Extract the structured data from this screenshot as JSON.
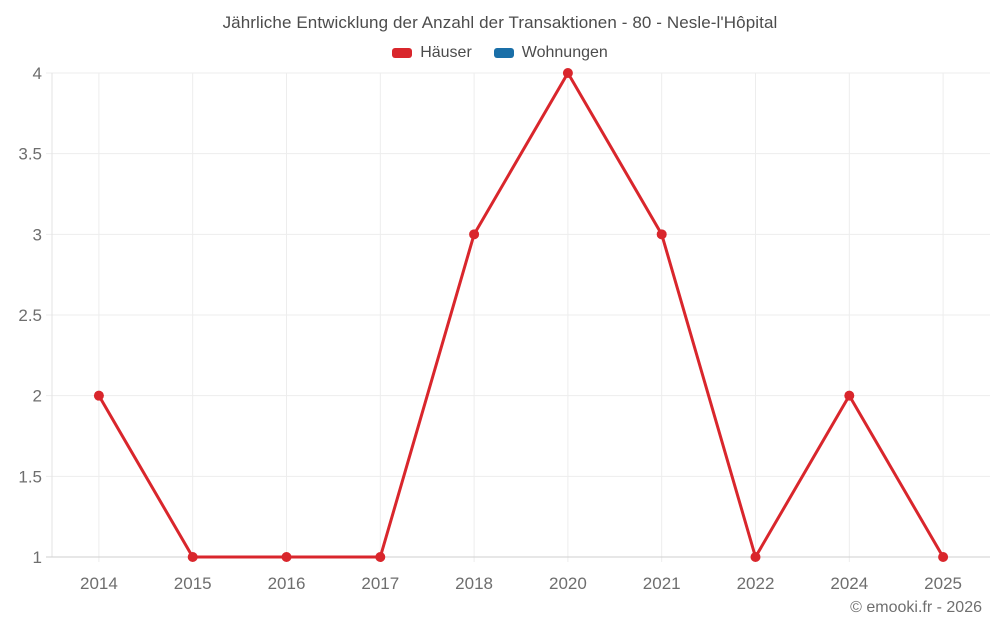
{
  "chart_data": {
    "type": "line",
    "title": "Jährliche Entwicklung der Anzahl der Transaktionen - 80 - Nesle-l'Hôpital",
    "categories": [
      "2014",
      "2015",
      "2016",
      "2017",
      "2018",
      "2020",
      "2021",
      "2022",
      "2024",
      "2025"
    ],
    "series": [
      {
        "name": "Häuser",
        "color": "#d9262c",
        "values": [
          2,
          1,
          1,
          1,
          3,
          4,
          3,
          1,
          2,
          1
        ]
      },
      {
        "name": "Wohnungen",
        "color": "#1a6fa8",
        "values": []
      }
    ],
    "xlabel": "",
    "ylabel": "",
    "ylim": [
      1,
      4
    ],
    "yticks": [
      1,
      1.5,
      2,
      2.5,
      3,
      3.5,
      4
    ],
    "grid": true,
    "legend_position": "top",
    "marker": "circle"
  },
  "colors": {
    "gridline": "#ededed",
    "axis_line_x": "#cfcfcf",
    "axis_line_y": "#e3e3e3",
    "axis_text": "#6e6e6e",
    "title_text": "#4c4c4c"
  },
  "footer": {
    "copyright": "© emooki.fr - 2026"
  }
}
